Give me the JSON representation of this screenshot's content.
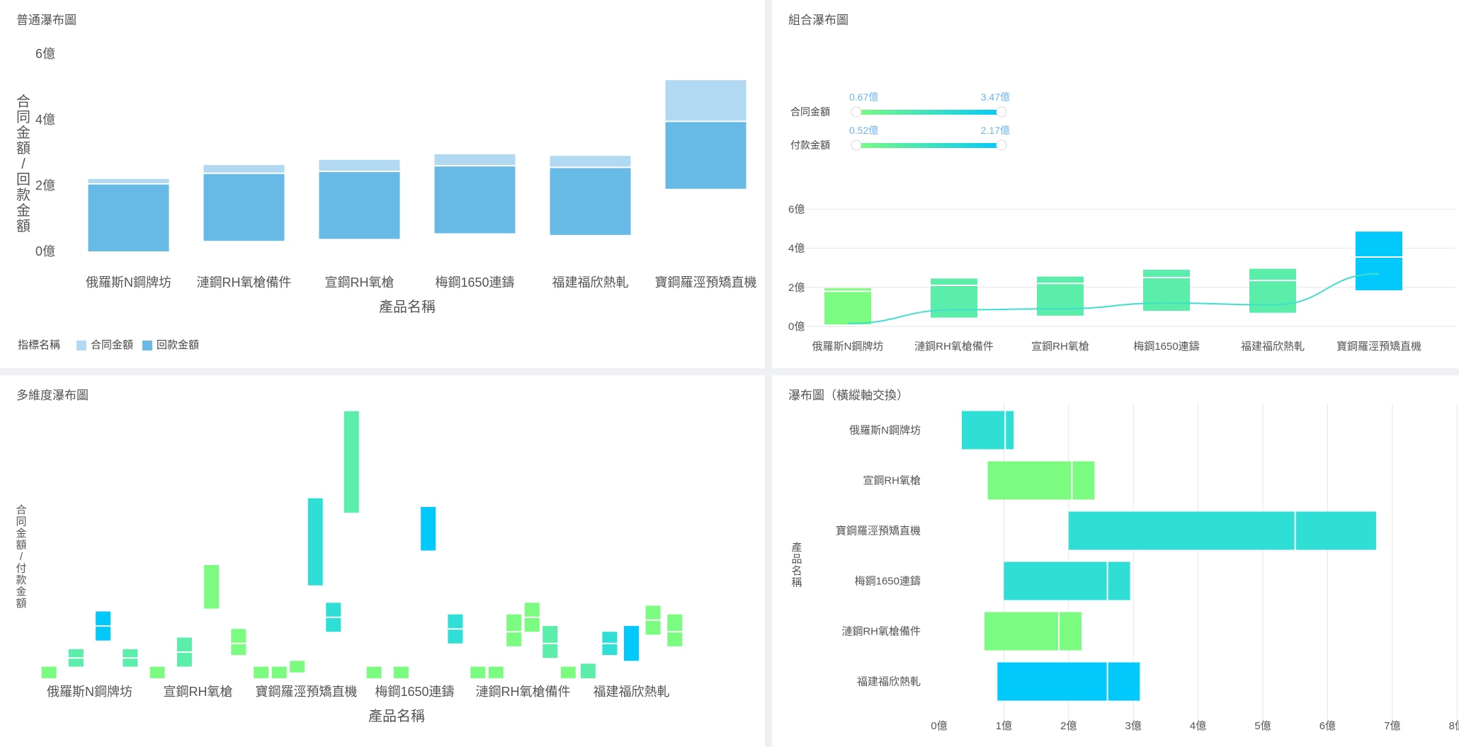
{
  "panels": {
    "p1": {
      "title": "普通瀑布圖"
    },
    "p2": {
      "title": "組合瀑布圖"
    },
    "p3": {
      "title": "多維度瀑布圖"
    },
    "p4": {
      "title": "瀑布圖（橫縱軸交換）"
    }
  },
  "colors": {
    "contract_light": "#b2d9f2",
    "payment_blue": "#67b9e6",
    "green": "#7bfb80",
    "teal_green": "#5bedaa",
    "teal": "#2fded4",
    "cyan": "#02c9fb",
    "line": "#3ee0cc"
  },
  "chart_data": [
    {
      "id": "normal-waterfall",
      "type": "bar",
      "title": "普通瀑布圖",
      "xlabel": "產品名稱",
      "ylabel": "合同金額/回款金額",
      "yticks": [
        "0億",
        "2億",
        "4億",
        "6億"
      ],
      "ylim": [
        0,
        6
      ],
      "legend_title": "指標名稱",
      "categories": [
        "俄羅斯N鋼牌坊",
        "漣鋼RH氧槍備件",
        "宣鋼RH氧槍",
        "梅鋼1650連鑄",
        "福建福欣熱軋",
        "寶鋼羅涇預矯直機"
      ],
      "series": [
        {
          "name": "合同金額",
          "base": [
            0,
            0.32,
            0.38,
            0.55,
            0.5,
            1.9
          ],
          "values": [
            2.2,
            2.3,
            2.4,
            2.4,
            2.4,
            3.3
          ]
        },
        {
          "name": "回款金額",
          "base": [
            0,
            0.32,
            0.38,
            0.55,
            0.5,
            1.9
          ],
          "values": [
            2.05,
            2.05,
            2.05,
            2.05,
            2.05,
            2.05
          ]
        }
      ]
    },
    {
      "id": "combo-waterfall",
      "type": "bar",
      "title": "組合瀑布圖",
      "yticks": [
        "0億",
        "2億",
        "4億",
        "6億"
      ],
      "ylim": [
        0,
        6
      ],
      "categories": [
        "俄羅斯N鋼牌坊",
        "漣鋼RH氧槍備件",
        "宣鋼RH氧槍",
        "梅鋼1650連鑄",
        "福建福欣熱軋",
        "寶鋼羅涇預矯直機"
      ],
      "filters": [
        {
          "label": "合同金額",
          "min": "0.67億",
          "max": "3.47億"
        },
        {
          "label": "付款金額",
          "min": "0.52億",
          "max": "2.17億"
        }
      ],
      "bars": [
        {
          "low": 0.1,
          "high": 1.95,
          "mid": 1.8,
          "color": "green"
        },
        {
          "low": 0.45,
          "high": 2.45,
          "mid": 2.1,
          "color": "teal_green"
        },
        {
          "low": 0.55,
          "high": 2.55,
          "mid": 2.2,
          "color": "teal_green"
        },
        {
          "low": 0.8,
          "high": 2.9,
          "mid": 2.5,
          "color": "teal_green"
        },
        {
          "low": 0.7,
          "high": 2.95,
          "mid": 2.35,
          "color": "teal_green"
        },
        {
          "low": 1.85,
          "high": 4.85,
          "mid": 3.55,
          "color": "cyan"
        }
      ],
      "line": [
        0.15,
        0.85,
        0.9,
        1.2,
        1.1,
        2.7
      ]
    },
    {
      "id": "multi-dim-waterfall",
      "type": "bar",
      "title": "多維度瀑布圖",
      "xlabel": "產品名稱",
      "ylabel": "合同金額/付款金額",
      "categories": [
        "俄羅斯N鋼牌坊",
        "宣鋼RH氧槍",
        "寶鋼羅涇預矯直機",
        "梅鋼1650連鑄",
        "漣鋼RH氧槍備件",
        "福建福欣熱軋"
      ],
      "ylim": [
        0,
        10
      ],
      "groups": [
        [
          {
            "low": 0.1,
            "high": 0.5,
            "mid": null,
            "color": "green"
          },
          {
            "low": 0.5,
            "high": 1.1,
            "mid": 0.8,
            "color": "teal_green"
          },
          {
            "low": 1.4,
            "high": 2.4,
            "mid": 1.9,
            "color": "cyan"
          },
          {
            "low": 0.5,
            "high": 1.1,
            "mid": 0.8,
            "color": "teal_green"
          }
        ],
        [
          {
            "low": 0.1,
            "high": 0.5,
            "mid": null,
            "color": "green"
          },
          {
            "low": 0.5,
            "high": 1.5,
            "mid": 1.0,
            "color": "teal_green"
          },
          {
            "low": 2.5,
            "high": 4.0,
            "mid": null,
            "color": "green"
          },
          {
            "low": 0.9,
            "high": 1.8,
            "mid": 1.3,
            "color": "green"
          }
        ],
        [
          {
            "low": 0.1,
            "high": 0.5,
            "mid": null,
            "color": "green"
          },
          {
            "low": 0.1,
            "high": 0.5,
            "mid": null,
            "color": "green"
          },
          {
            "low": 0.3,
            "high": 0.7,
            "mid": null,
            "color": "green"
          },
          {
            "low": 3.3,
            "high": 6.3,
            "mid": null,
            "color": "teal"
          },
          {
            "low": 1.7,
            "high": 2.7,
            "mid": 2.2,
            "color": "teal"
          },
          {
            "low": 5.8,
            "high": 9.3,
            "mid": null,
            "color": "teal_green"
          }
        ],
        [
          {
            "low": 0.1,
            "high": 0.5,
            "mid": null,
            "color": "green"
          },
          {
            "low": 0.1,
            "high": 0.5,
            "mid": null,
            "color": "green"
          },
          {
            "low": 4.5,
            "high": 6.0,
            "mid": null,
            "color": "cyan"
          },
          {
            "low": 1.3,
            "high": 2.3,
            "mid": 1.8,
            "color": "teal"
          }
        ],
        [
          {
            "low": 0.1,
            "high": 0.5,
            "mid": null,
            "color": "green"
          },
          {
            "low": 0.1,
            "high": 0.5,
            "mid": null,
            "color": "green"
          },
          {
            "low": 1.2,
            "high": 2.3,
            "mid": 1.7,
            "color": "green"
          },
          {
            "low": 1.7,
            "high": 2.7,
            "mid": 2.2,
            "color": "green"
          },
          {
            "low": 0.8,
            "high": 1.9,
            "mid": 1.3,
            "color": "teal_green"
          },
          {
            "low": 0.1,
            "high": 0.5,
            "mid": null,
            "color": "green"
          }
        ],
        [
          {
            "low": 0.1,
            "high": 0.6,
            "mid": null,
            "color": "teal_green"
          },
          {
            "low": 0.9,
            "high": 1.7,
            "mid": 1.3,
            "color": "teal"
          },
          {
            "low": 0.7,
            "high": 1.9,
            "mid": null,
            "color": "cyan"
          },
          {
            "low": 1.6,
            "high": 2.6,
            "mid": 2.1,
            "color": "green"
          },
          {
            "low": 1.2,
            "high": 2.3,
            "mid": 1.7,
            "color": "green"
          }
        ]
      ]
    },
    {
      "id": "horizontal-waterfall",
      "type": "bar",
      "title": "瀑布圖（橫縱軸交換）",
      "ylabel": "產品名稱",
      "xticks": [
        "0億",
        "1億",
        "2億",
        "3億",
        "4億",
        "5億",
        "6億",
        "7億",
        "8億"
      ],
      "xlim": [
        0,
        8
      ],
      "categories": [
        "俄羅斯N鋼牌坊",
        "宣鋼RH氧槍",
        "寶鋼羅涇預矯直機",
        "梅鋼1650連鑄",
        "漣鋼RH氧槍備件",
        "福建福欣熱軋"
      ],
      "bars": [
        {
          "low": 0.35,
          "high": 1.15,
          "mid": 1.02,
          "color": "teal"
        },
        {
          "low": 0.75,
          "high": 2.4,
          "mid": 2.05,
          "color": "green"
        },
        {
          "low": 2.0,
          "high": 6.75,
          "mid": 5.5,
          "color": "teal"
        },
        {
          "low": 1.0,
          "high": 2.95,
          "mid": 2.6,
          "color": "teal"
        },
        {
          "low": 0.7,
          "high": 2.2,
          "mid": 1.85,
          "color": "green"
        },
        {
          "low": 0.9,
          "high": 3.1,
          "mid": 2.6,
          "color": "cyan"
        }
      ]
    }
  ]
}
